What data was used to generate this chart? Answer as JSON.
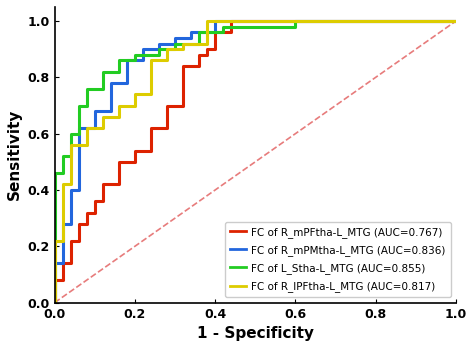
{
  "xlabel": "1 - Specificity",
  "ylabel": "Sensitivity",
  "xlim": [
    0.0,
    1.0
  ],
  "ylim": [
    0.0,
    1.05
  ],
  "xticks": [
    0.0,
    0.2,
    0.4,
    0.6,
    0.8,
    1.0
  ],
  "yticks": [
    0.0,
    0.2,
    0.4,
    0.6,
    0.8,
    1.0
  ],
  "diagonal_color": "#dd4444",
  "background_color": "#ffffff",
  "curves": [
    {
      "label": "FC of R_mPFtha-L_MTG (AUC=0.767)",
      "color": "#dd2200",
      "fpr": [
        0.0,
        0.0,
        0.02,
        0.02,
        0.04,
        0.04,
        0.06,
        0.06,
        0.08,
        0.08,
        0.1,
        0.1,
        0.12,
        0.12,
        0.16,
        0.16,
        0.2,
        0.2,
        0.24,
        0.24,
        0.28,
        0.28,
        0.32,
        0.32,
        0.36,
        0.36,
        0.38,
        0.38,
        0.4,
        0.4,
        0.44,
        0.44,
        0.6,
        1.0
      ],
      "tpr": [
        0.0,
        0.08,
        0.08,
        0.14,
        0.14,
        0.22,
        0.22,
        0.28,
        0.28,
        0.32,
        0.32,
        0.36,
        0.36,
        0.42,
        0.42,
        0.5,
        0.5,
        0.54,
        0.54,
        0.62,
        0.62,
        0.7,
        0.7,
        0.84,
        0.84,
        0.88,
        0.88,
        0.9,
        0.9,
        0.96,
        0.96,
        1.0,
        1.0,
        1.0
      ]
    },
    {
      "label": "FC of R_mPMtha-L_MTG (AUC=0.836)",
      "color": "#2266dd",
      "fpr": [
        0.0,
        0.0,
        0.02,
        0.02,
        0.04,
        0.04,
        0.06,
        0.06,
        0.1,
        0.1,
        0.14,
        0.14,
        0.18,
        0.18,
        0.22,
        0.22,
        0.26,
        0.26,
        0.3,
        0.3,
        0.34,
        0.34,
        0.4,
        0.4,
        0.5,
        1.0
      ],
      "tpr": [
        0.0,
        0.14,
        0.14,
        0.28,
        0.28,
        0.4,
        0.4,
        0.62,
        0.62,
        0.68,
        0.68,
        0.78,
        0.78,
        0.86,
        0.86,
        0.9,
        0.9,
        0.92,
        0.92,
        0.94,
        0.94,
        0.96,
        0.96,
        1.0,
        1.0,
        1.0
      ]
    },
    {
      "label": "FC of L_Stha-L_MTG (AUC=0.855)",
      "color": "#22cc22",
      "fpr": [
        0.0,
        0.0,
        0.02,
        0.02,
        0.04,
        0.04,
        0.06,
        0.06,
        0.08,
        0.08,
        0.12,
        0.12,
        0.16,
        0.16,
        0.2,
        0.2,
        0.26,
        0.26,
        0.3,
        0.3,
        0.36,
        0.36,
        0.42,
        0.42,
        0.6,
        0.6,
        0.7,
        1.0
      ],
      "tpr": [
        0.0,
        0.46,
        0.46,
        0.52,
        0.52,
        0.6,
        0.6,
        0.7,
        0.7,
        0.76,
        0.76,
        0.82,
        0.82,
        0.86,
        0.86,
        0.88,
        0.88,
        0.9,
        0.9,
        0.92,
        0.92,
        0.96,
        0.96,
        0.98,
        0.98,
        1.0,
        1.0,
        1.0
      ]
    },
    {
      "label": "FC of R_lPFtha-L_MTG (AUC=0.817)",
      "color": "#ddcc00",
      "fpr": [
        0.0,
        0.0,
        0.02,
        0.02,
        0.04,
        0.04,
        0.08,
        0.08,
        0.12,
        0.12,
        0.16,
        0.16,
        0.2,
        0.2,
        0.24,
        0.24,
        0.28,
        0.28,
        0.32,
        0.32,
        0.38,
        0.38,
        0.5,
        1.0
      ],
      "tpr": [
        0.0,
        0.22,
        0.22,
        0.42,
        0.42,
        0.56,
        0.56,
        0.62,
        0.62,
        0.66,
        0.66,
        0.7,
        0.7,
        0.74,
        0.74,
        0.86,
        0.86,
        0.9,
        0.9,
        0.92,
        0.92,
        1.0,
        1.0,
        1.0
      ]
    }
  ],
  "legend_labels": [
    "FC of R_mPFtha-L_MTG (AUC=0.767)",
    "FC of R_mPMtha-L_MTG (AUC=0.836)",
    "FC of L_Stha-L_MTG (AUC=0.855)",
    "FC of R_lPFtha-L_MTG (AUC=0.817)"
  ],
  "legend_colors": [
    "#dd2200",
    "#2266dd",
    "#22cc22",
    "#ddcc00"
  ],
  "linewidth": 2.2,
  "fontsize_axis_label": 11,
  "fontsize_ticks": 9,
  "fontsize_legend": 7.5
}
